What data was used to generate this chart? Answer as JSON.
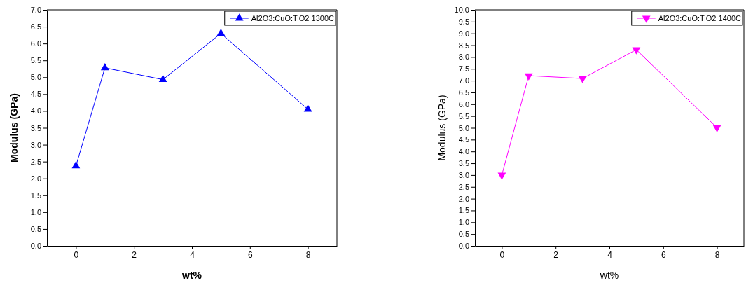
{
  "chart_data": [
    {
      "type": "line",
      "xlabel": "wt%",
      "ylabel": "Modulus (GPa)",
      "x": [
        0,
        1,
        3,
        5,
        8
      ],
      "xlim": [
        -1,
        9
      ],
      "xticks": [
        0,
        2,
        4,
        6,
        8
      ],
      "ylim": [
        0,
        7
      ],
      "yticks": [
        {
          "value": 0,
          "label": "0.0"
        },
        0.5,
        {
          "value": 1,
          "label": "1.0"
        },
        1.5,
        {
          "value": 2,
          "label": "2.0"
        },
        2.5,
        {
          "value": 3,
          "label": "3.0"
        },
        3.5,
        {
          "value": 4,
          "label": "4.0"
        },
        4.5,
        {
          "value": 5,
          "label": "5.0"
        },
        5.5,
        {
          "value": 6,
          "label": "6.0"
        },
        6.5,
        {
          "value": 7,
          "label": "7.0"
        }
      ],
      "marker": "triangle",
      "legend": "top right",
      "grid": false,
      "series": [
        {
          "name": "Al2O3:CuO:TiO2 1300C",
          "color": "#0000ff",
          "values": [
            2.37,
            5.28,
            4.93,
            6.3,
            4.05
          ]
        }
      ]
    },
    {
      "type": "line",
      "xlabel": "wt%",
      "ylabel": "Modulus (GPa)",
      "x": [
        0,
        1,
        3,
        5,
        8
      ],
      "xlim": [
        -1,
        9
      ],
      "xticks": [
        0,
        2,
        4,
        6,
        8
      ],
      "ylim": [
        0,
        10
      ],
      "yticks": [
        {
          "value": 0,
          "label": "0.0"
        },
        0.5,
        {
          "value": 1,
          "label": "1.0"
        },
        1.5,
        {
          "value": 2,
          "label": "2.0"
        },
        2.5,
        {
          "value": 3,
          "label": "3.0"
        },
        3.5,
        {
          "value": 4,
          "label": "4.0"
        },
        4.5,
        {
          "value": 5,
          "label": "5.0"
        },
        5.5,
        {
          "value": 6,
          "label": "6.0"
        },
        6.5,
        {
          "value": 7,
          "label": "7.0"
        },
        7.5,
        {
          "value": 8,
          "label": "8.0"
        },
        8.5,
        {
          "value": 9,
          "label": "9.0"
        },
        9.5,
        {
          "value": 10,
          "label": "10.0"
        }
      ],
      "marker": "triangle",
      "legend": "top right",
      "grid": false,
      "series": [
        {
          "name": "Al2O3:CuO:TiO2 1400C",
          "color": "#ff00ff",
          "values": [
            3.0,
            7.21,
            7.09,
            8.31,
            5.01
          ]
        }
      ]
    }
  ]
}
